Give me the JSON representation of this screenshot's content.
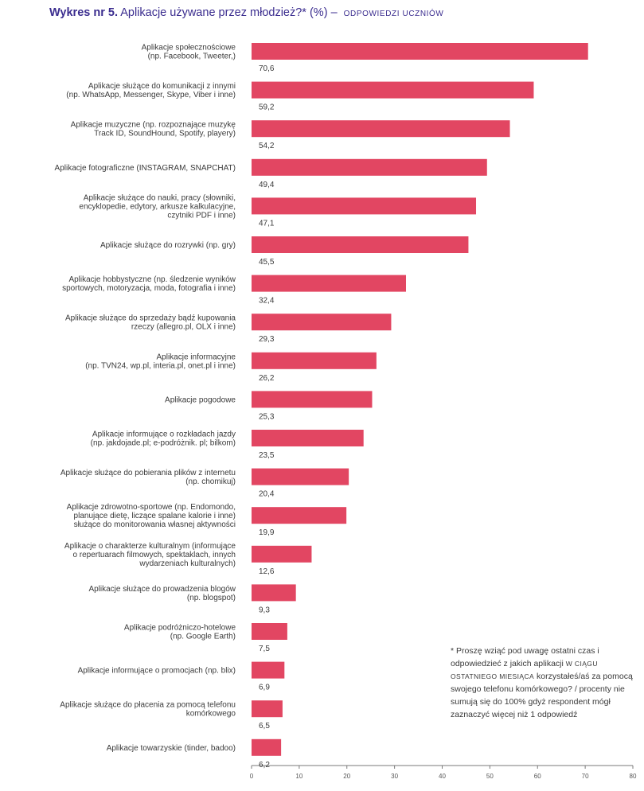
{
  "title": {
    "lead": "Wykres nr 5.",
    "main": "Aplikacje używane przez młodzież?* (%)",
    "dash": "–",
    "responses": "ODPOWIEDZI UCZNIÓW"
  },
  "footnote": {
    "part1": "* Proszę wziąć pod uwagę ostatni czas i odpowiedzieć z jakich aplikacji",
    "emph": "W CIĄGU OSTATNIEGO MIESIĄCA",
    "part2": "korzystałeś/aś za pomocą swojego telefonu komórkowego? / procenty nie sumują się do 100% gdyż respondent mógł zaznaczyć więcej niż 1 odpowiedź"
  },
  "colors": {
    "bar": "#e24662",
    "title": "#3b2d8f",
    "text": "#3a3a3a"
  },
  "chart_data": {
    "type": "bar",
    "orientation": "horizontal",
    "xlim": [
      0,
      80
    ],
    "ticks": [
      0,
      10,
      20,
      30,
      40,
      50,
      60,
      70,
      80
    ],
    "grid": false,
    "categories": [
      [
        "Aplikacje społecznościowe",
        "(np. Facebook, Tweeter,)"
      ],
      [
        "Aplikacje służące do komunikacji z innymi",
        "(np. WhatsApp, Messenger, Skype, Viber i inne)"
      ],
      [
        "Aplikacje muzyczne (np. rozpoznające muzykę",
        "Track ID, SoundHound, Spotify, playery)"
      ],
      [
        "Aplikacje fotograficzne (INSTAGRAM, SNAPCHAT)"
      ],
      [
        "Aplikacje służące do nauki, pracy (słowniki,",
        "encyklopedie, edytory, arkusze kalkulacyjne,",
        "czytniki PDF i inne)"
      ],
      [
        "Aplikacje służące do rozrywki (np. gry)"
      ],
      [
        "Aplikacje hobbystyczne (np. śledzenie wyników",
        "sportowych, motoryzacja, moda, fotografia i inne)"
      ],
      [
        "Aplikacje służące do sprzedaży bądź kupowania",
        "rzeczy (allegro.pl, OLX i inne)"
      ],
      [
        "Aplikacje informacyjne",
        "(np. TVN24, wp.pl, interia.pl, onet.pl i inne)"
      ],
      [
        "Aplikacje pogodowe"
      ],
      [
        "Aplikacje informujące o rozkładach jazdy",
        "(np. jakdojade.pl; e-podróżnik. pl; bilkom)"
      ],
      [
        "Aplikacje służące do pobierania plików z internetu",
        "(np. chomikuj)"
      ],
      [
        "Aplikacje zdrowotno-sportowe (np. Endomondo,",
        "planujące dietę, liczące spalane kalorie i inne)",
        "służące do monitorowania własnej aktywności"
      ],
      [
        "Aplikacje o charakterze kulturalnym (informujące",
        "o repertuarach filmowych, spektaklach, innych",
        "wydarzeniach kulturalnych)"
      ],
      [
        "Aplikacje służące do prowadzenia blogów",
        "(np. blogspot)"
      ],
      [
        "Aplikacje podróżniczo-hotelowe",
        "(np. Google Earth)"
      ],
      [
        "Aplikacje informujące o promocjach (np. blix)"
      ],
      [
        "Aplikacje służące do płacenia za pomocą telefonu",
        "komórkowego"
      ],
      [
        "Aplikacje towarzyskie (tinder, badoo)"
      ]
    ],
    "values": [
      70.6,
      59.2,
      54.2,
      49.4,
      47.1,
      45.5,
      32.4,
      29.3,
      26.2,
      25.3,
      23.5,
      20.4,
      19.9,
      12.6,
      9.3,
      7.5,
      6.9,
      6.5,
      6.2
    ],
    "value_labels": [
      "70,6",
      "59,2",
      "54,2",
      "49,4",
      "47,1",
      "45,5",
      "32,4",
      "29,3",
      "26,2",
      "25,3",
      "23,5",
      "20,4",
      "19,9",
      "12,6",
      "9,3",
      "7,5",
      "6,9",
      "6,5",
      "6,2"
    ]
  }
}
